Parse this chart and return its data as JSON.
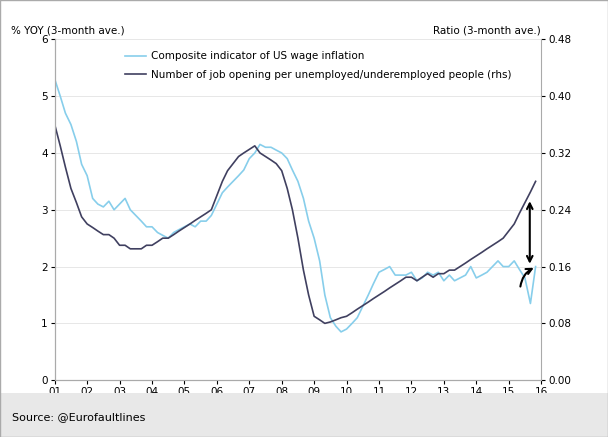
{
  "title_left": "% YOY (3-month ave.)",
  "title_right": "Ratio (3-month ave.)",
  "source": "Source: @Eurofaultlines",
  "legend1": "Composite indicator of US wage inflation",
  "legend2": "Number of job opening per unemployed/underemployed people (rhs)",
  "ylim_left": [
    0,
    6
  ],
  "ylim_right": [
    0.0,
    0.48
  ],
  "yticks_left": [
    0,
    1,
    2,
    3,
    4,
    5,
    6
  ],
  "yticks_right": [
    0.0,
    0.08,
    0.16,
    0.24,
    0.32,
    0.4,
    0.48
  ],
  "xtick_labels": [
    "01",
    "02",
    "03",
    "04",
    "05",
    "06",
    "07",
    "08",
    "09",
    "10",
    "11",
    "12",
    "13",
    "14",
    "15",
    "16"
  ],
  "color_wage": "#87CEEB",
  "color_jobs": "#404060",
  "wage_x": [
    2001.0,
    2001.17,
    2001.33,
    2001.5,
    2001.67,
    2001.83,
    2002.0,
    2002.17,
    2002.33,
    2002.5,
    2002.67,
    2002.83,
    2003.0,
    2003.17,
    2003.33,
    2003.5,
    2003.67,
    2003.83,
    2004.0,
    2004.17,
    2004.33,
    2004.5,
    2004.67,
    2004.83,
    2005.0,
    2005.17,
    2005.33,
    2005.5,
    2005.67,
    2005.83,
    2006.0,
    2006.17,
    2006.33,
    2006.5,
    2006.67,
    2006.83,
    2007.0,
    2007.17,
    2007.33,
    2007.5,
    2007.67,
    2007.83,
    2008.0,
    2008.17,
    2008.33,
    2008.5,
    2008.67,
    2008.83,
    2009.0,
    2009.17,
    2009.33,
    2009.5,
    2009.67,
    2009.83,
    2010.0,
    2010.17,
    2010.33,
    2010.5,
    2010.67,
    2010.83,
    2011.0,
    2011.17,
    2011.33,
    2011.5,
    2011.67,
    2011.83,
    2012.0,
    2012.17,
    2012.33,
    2012.5,
    2012.67,
    2012.83,
    2013.0,
    2013.17,
    2013.33,
    2013.5,
    2013.67,
    2013.83,
    2014.0,
    2014.17,
    2014.33,
    2014.5,
    2014.67,
    2014.83,
    2015.0,
    2015.17,
    2015.33,
    2015.5,
    2015.67,
    2015.83
  ],
  "wage_y": [
    5.3,
    5.0,
    4.7,
    4.5,
    4.2,
    3.8,
    3.6,
    3.2,
    3.1,
    3.05,
    3.15,
    3.0,
    3.1,
    3.2,
    3.0,
    2.9,
    2.8,
    2.7,
    2.7,
    2.6,
    2.55,
    2.5,
    2.6,
    2.65,
    2.7,
    2.75,
    2.7,
    2.8,
    2.8,
    2.9,
    3.1,
    3.3,
    3.4,
    3.5,
    3.6,
    3.7,
    3.9,
    4.0,
    4.15,
    4.1,
    4.1,
    4.05,
    4.0,
    3.9,
    3.7,
    3.5,
    3.2,
    2.8,
    2.5,
    2.1,
    1.5,
    1.1,
    0.95,
    0.85,
    0.9,
    1.0,
    1.1,
    1.3,
    1.5,
    1.7,
    1.9,
    1.95,
    2.0,
    1.85,
    1.85,
    1.85,
    1.9,
    1.75,
    1.8,
    1.9,
    1.85,
    1.9,
    1.75,
    1.85,
    1.75,
    1.8,
    1.85,
    2.0,
    1.8,
    1.85,
    1.9,
    2.0,
    2.1,
    2.0,
    2.0,
    2.1,
    1.95,
    1.8,
    1.35,
    2.0
  ],
  "jobs_x": [
    2001.0,
    2001.17,
    2001.33,
    2001.5,
    2001.67,
    2001.83,
    2002.0,
    2002.17,
    2002.33,
    2002.5,
    2002.67,
    2002.83,
    2003.0,
    2003.17,
    2003.33,
    2003.5,
    2003.67,
    2003.83,
    2004.0,
    2004.17,
    2004.33,
    2004.5,
    2004.67,
    2004.83,
    2005.0,
    2005.17,
    2005.33,
    2005.5,
    2005.67,
    2005.83,
    2006.0,
    2006.17,
    2006.33,
    2006.5,
    2006.67,
    2006.83,
    2007.0,
    2007.17,
    2007.33,
    2007.5,
    2007.67,
    2007.83,
    2008.0,
    2008.17,
    2008.33,
    2008.5,
    2008.67,
    2008.83,
    2009.0,
    2009.17,
    2009.33,
    2009.5,
    2009.67,
    2009.83,
    2010.0,
    2010.17,
    2010.33,
    2010.5,
    2010.67,
    2010.83,
    2011.0,
    2011.17,
    2011.33,
    2011.5,
    2011.67,
    2011.83,
    2012.0,
    2012.17,
    2012.33,
    2012.5,
    2012.67,
    2012.83,
    2013.0,
    2013.17,
    2013.33,
    2013.5,
    2013.67,
    2013.83,
    2014.0,
    2014.17,
    2014.33,
    2014.5,
    2014.67,
    2014.83,
    2015.0,
    2015.17,
    2015.33,
    2015.5,
    2015.67,
    2015.83
  ],
  "jobs_y": [
    0.36,
    0.33,
    0.3,
    0.27,
    0.25,
    0.23,
    0.22,
    0.215,
    0.21,
    0.205,
    0.205,
    0.2,
    0.19,
    0.19,
    0.185,
    0.185,
    0.185,
    0.19,
    0.19,
    0.195,
    0.2,
    0.2,
    0.205,
    0.21,
    0.215,
    0.22,
    0.225,
    0.23,
    0.235,
    0.24,
    0.26,
    0.28,
    0.295,
    0.305,
    0.315,
    0.32,
    0.325,
    0.33,
    0.32,
    0.315,
    0.31,
    0.305,
    0.295,
    0.27,
    0.24,
    0.2,
    0.155,
    0.12,
    0.09,
    0.085,
    0.08,
    0.082,
    0.085,
    0.088,
    0.09,
    0.095,
    0.1,
    0.105,
    0.11,
    0.115,
    0.12,
    0.125,
    0.13,
    0.135,
    0.14,
    0.145,
    0.145,
    0.14,
    0.145,
    0.15,
    0.145,
    0.15,
    0.15,
    0.155,
    0.155,
    0.16,
    0.165,
    0.17,
    0.175,
    0.18,
    0.185,
    0.19,
    0.195,
    0.2,
    0.21,
    0.22,
    0.235,
    0.25,
    0.265,
    0.28
  ]
}
